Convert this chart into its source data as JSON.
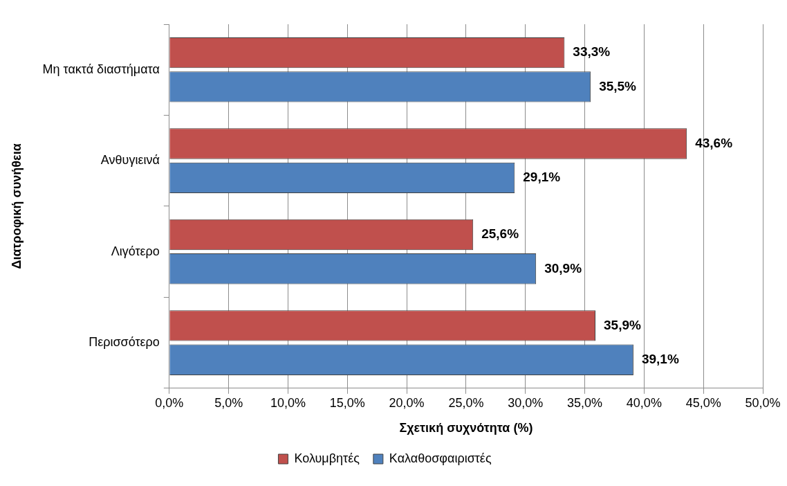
{
  "chart_data": {
    "type": "bar",
    "orientation": "horizontal",
    "xlabel": "Σχετική συχνότητα (%)",
    "ylabel": "Διατροφική συνήθεια",
    "categories": [
      "Μη τακτά διαστήματα",
      "Ανθυγιεινά",
      "Λιγότερο",
      "Περισσότερο"
    ],
    "series": [
      {
        "name": "Κολυμβητές",
        "color": "#c0504d",
        "values": [
          33.3,
          43.6,
          25.6,
          35.9
        ],
        "value_labels": [
          "33,3%",
          "43,6%",
          "25,6%",
          "35,9%"
        ]
      },
      {
        "name": "Καλαθοσφαιριστές",
        "color": "#4f81bd",
        "values": [
          35.5,
          29.1,
          30.9,
          39.1
        ],
        "value_labels": [
          "35,5%",
          "29,1%",
          "30,9%",
          "39,1%"
        ]
      }
    ],
    "xlim": [
      0,
      50
    ],
    "xticks": [
      {
        "value": 0,
        "label": "0,0%"
      },
      {
        "value": 5,
        "label": "5,0%"
      },
      {
        "value": 10,
        "label": "10,0%"
      },
      {
        "value": 15,
        "label": "15,0%"
      },
      {
        "value": 20,
        "label": "20,0%"
      },
      {
        "value": 25,
        "label": "25,0%"
      },
      {
        "value": 30,
        "label": "30,0%"
      },
      {
        "value": 35,
        "label": "35,0%"
      },
      {
        "value": 40,
        "label": "40,0%"
      },
      {
        "value": 45,
        "label": "45,0%"
      },
      {
        "value": 50,
        "label": "50,0%"
      }
    ],
    "grid": "x",
    "legend": "bottom"
  }
}
